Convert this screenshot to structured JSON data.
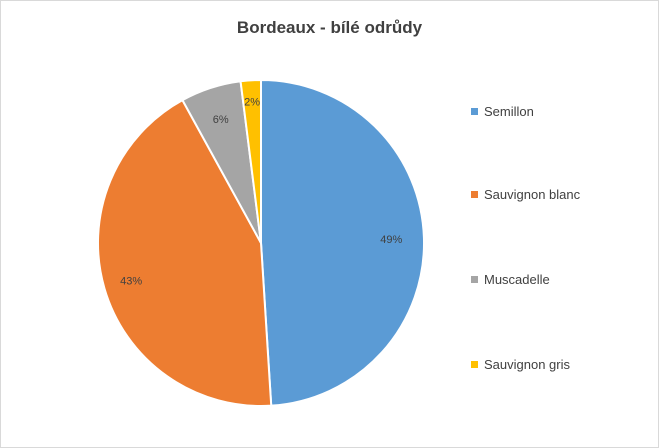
{
  "chart_data": {
    "type": "pie",
    "title": "Bordeaux - bílé odrůdy",
    "categories": [
      "Semillon",
      "Sauvignon blanc",
      "Muscadelle",
      "Sauvignon gris"
    ],
    "values": [
      49,
      43,
      6,
      2
    ],
    "data_labels": [
      "49%",
      "43%",
      "6%",
      "2%"
    ],
    "colors": [
      "#5b9bd5",
      "#ed7d31",
      "#a5a5a5",
      "#ffc000"
    ],
    "legend_position": "right",
    "start_angle_deg": 0,
    "direction": "clockwise"
  }
}
